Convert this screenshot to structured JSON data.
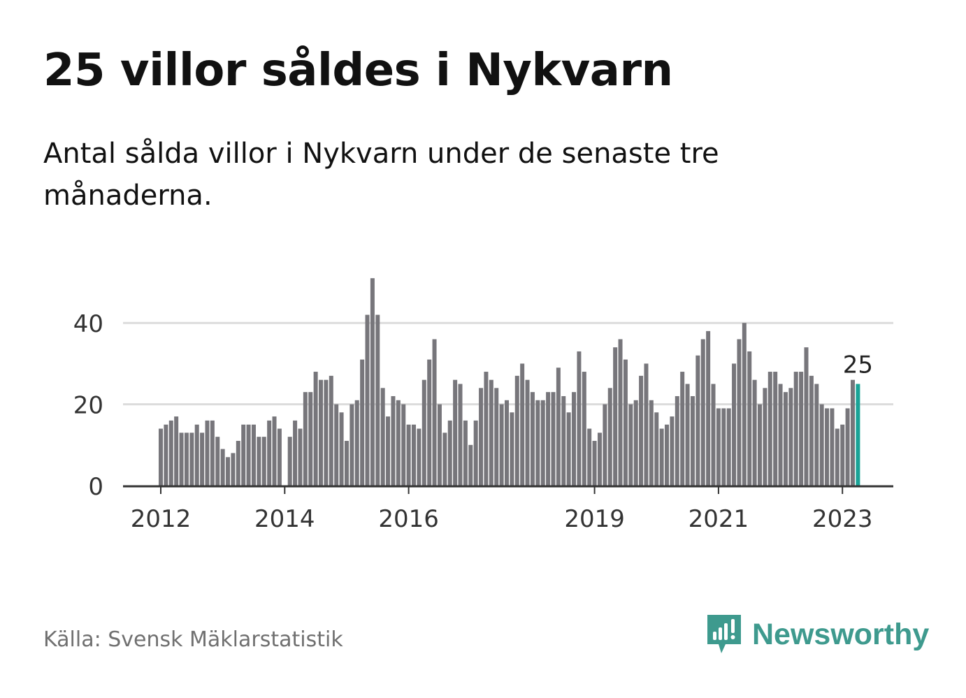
{
  "title": "25 villor såldes i Nykvarn",
  "subtitle": "Antal sålda villor i Nykvarn under de senaste tre månaderna.",
  "source": "Källa: Svensk Mäklarstatistik",
  "brand": {
    "name": "Newsworthy",
    "icon": "newsworthy-logo-icon",
    "color": "#3e9a8e"
  },
  "colors": {
    "bar": "#77767b",
    "highlight": "#19a397",
    "grid": "#dcdcdc",
    "axis": "#333333",
    "tick_text": "#333333"
  },
  "chart_data": {
    "type": "bar",
    "title": "25 villor såldes i Nykvarn",
    "xlabel": "",
    "ylabel": "",
    "ylim": [
      0,
      52
    ],
    "y_ticks": [
      0,
      20,
      40
    ],
    "grid": true,
    "x_ticks": [
      {
        "label": "2012",
        "month_index": 0
      },
      {
        "label": "2014",
        "month_index": 24
      },
      {
        "label": "2016",
        "month_index": 48
      },
      {
        "label": "2019",
        "month_index": 84
      },
      {
        "label": "2021",
        "month_index": 108
      },
      {
        "label": "2023",
        "month_index": 132
      }
    ],
    "first_month": "2012-01",
    "highlight": {
      "month_index": 135,
      "value": 25,
      "label": "25"
    },
    "values": [
      14,
      15,
      16,
      17,
      13,
      13,
      13,
      15,
      13,
      16,
      16,
      12,
      9,
      7,
      8,
      11,
      15,
      15,
      15,
      12,
      12,
      16,
      17,
      14,
      null,
      12,
      16,
      14,
      23,
      23,
      28,
      26,
      26,
      27,
      20,
      18,
      11,
      20,
      21,
      31,
      42,
      51,
      42,
      24,
      17,
      22,
      21,
      20,
      15,
      15,
      14,
      26,
      31,
      36,
      20,
      13,
      16,
      26,
      25,
      16,
      10,
      16,
      24,
      28,
      26,
      24,
      20,
      21,
      18,
      27,
      30,
      26,
      23,
      21,
      21,
      23,
      23,
      29,
      22,
      18,
      23,
      33,
      28,
      14,
      11,
      13,
      20,
      24,
      34,
      36,
      31,
      20,
      21,
      27,
      30,
      21,
      18,
      14,
      15,
      17,
      22,
      28,
      25,
      22,
      32,
      36,
      38,
      25,
      19,
      19,
      19,
      30,
      36,
      40,
      33,
      26,
      20,
      24,
      28,
      28,
      25,
      23,
      24,
      28,
      28,
      34,
      27,
      25,
      20,
      19,
      19,
      14,
      15,
      19,
      26,
      25
    ]
  }
}
